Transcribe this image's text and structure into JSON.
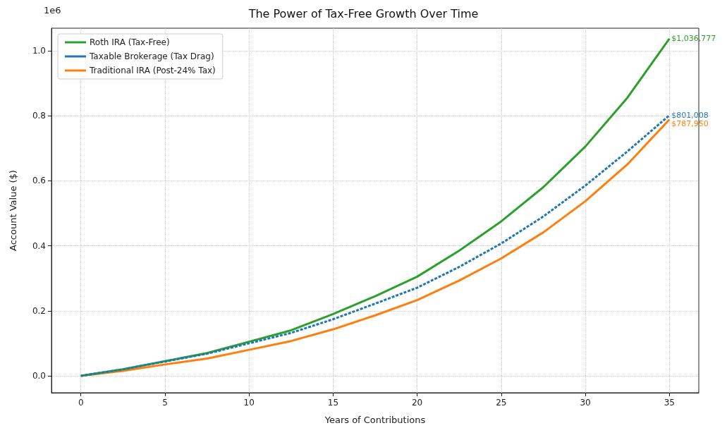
{
  "chart_data": {
    "type": "line",
    "title": "The Power of Tax-Free Growth Over Time",
    "xlabel": "Years of Contributions",
    "ylabel": "Account Value ($)",
    "annotations": [
      "1e6",
      "$1,036,777",
      "$801,008",
      "$787,950"
    ],
    "x": [
      0,
      2.5,
      5,
      7.5,
      10,
      12.5,
      15,
      17.5,
      20,
      22.5,
      25,
      27.5,
      30,
      32.5,
      35
    ],
    "series": [
      {
        "name": "Roth IRA (Tax-Free)",
        "color": "#2ca02c",
        "line_style": "solid",
        "values": [
          0,
          0.02,
          0.045,
          0.07,
          0.105,
          0.14,
          0.19,
          0.245,
          0.305,
          0.385,
          0.475,
          0.58,
          0.705,
          0.855,
          1.037
        ]
      },
      {
        "name": "Taxable Brokerage (Tax Drag)",
        "color": "#1f77b4",
        "line_style": "dashed",
        "values": [
          0,
          0.02,
          0.044,
          0.068,
          0.1,
          0.132,
          0.174,
          0.222,
          0.271,
          0.335,
          0.407,
          0.49,
          0.585,
          0.69,
          0.801
        ]
      },
      {
        "name": "Traditional IRA (Post-24% Tax)",
        "color": "#ff7f0e",
        "line_style": "solid",
        "values": [
          0,
          0.015,
          0.035,
          0.053,
          0.08,
          0.107,
          0.143,
          0.186,
          0.233,
          0.293,
          0.361,
          0.441,
          0.537,
          0.65,
          0.788
        ]
      }
    ],
    "xlim": [
      -1.75,
      36.75
    ],
    "xticks": [
      0,
      5,
      10,
      15,
      20,
      25,
      30,
      35
    ],
    "ylim": [
      -0.052,
      1.069
    ],
    "yticks": [
      {
        "value": 0,
        "label": "0.0"
      },
      0.2,
      0.4,
      0.6,
      0.8,
      {
        "value": 1,
        "label": "1.0"
      }
    ],
    "grid": true,
    "legend": "top left",
    "marker": "none"
  }
}
